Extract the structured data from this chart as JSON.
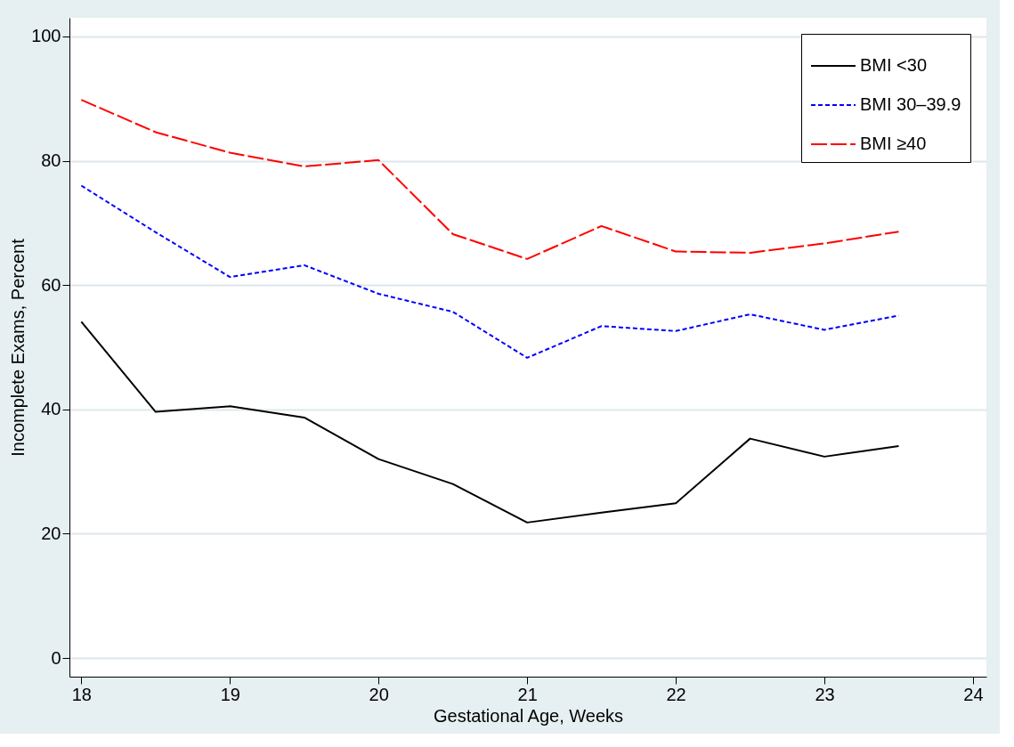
{
  "chart_data": {
    "type": "line",
    "xlabel": "Gestational Age, Weeks",
    "ylabel": "Incomplete Exams, Percent",
    "x": [
      18,
      18.5,
      19,
      19.5,
      20,
      20.5,
      21,
      21.5,
      22,
      22.5,
      23,
      23.5
    ],
    "series": [
      {
        "name": "BMI <30",
        "color": "#000000",
        "line_style": "solid",
        "values": [
          54.1,
          39.6,
          40.5,
          38.7,
          32.0,
          28.0,
          21.8,
          23.4,
          24.9,
          35.3,
          32.4,
          34.1
        ]
      },
      {
        "name": "BMI 30–39.9",
        "color": "#0000ff",
        "line_style": "dotted",
        "values": [
          76.0,
          68.5,
          61.3,
          63.2,
          58.6,
          55.7,
          48.3,
          53.4,
          52.6,
          55.3,
          52.8,
          55.1
        ]
      },
      {
        "name": "BMI ≥40",
        "color": "#ff0000",
        "line_style": "dashed",
        "values": [
          89.8,
          84.6,
          81.3,
          79.1,
          80.1,
          68.2,
          64.2,
          69.5,
          65.4,
          65.2,
          66.7,
          68.6
        ]
      }
    ],
    "xlim": [
      17.92,
      24.09
    ],
    "ylim": [
      -3,
      103
    ],
    "xticks": [
      18,
      19,
      20,
      21,
      22,
      23,
      24
    ],
    "yticks": [
      0,
      20,
      40,
      60,
      80,
      100
    ],
    "grid": "y",
    "legend": "top right",
    "marker": "none"
  }
}
